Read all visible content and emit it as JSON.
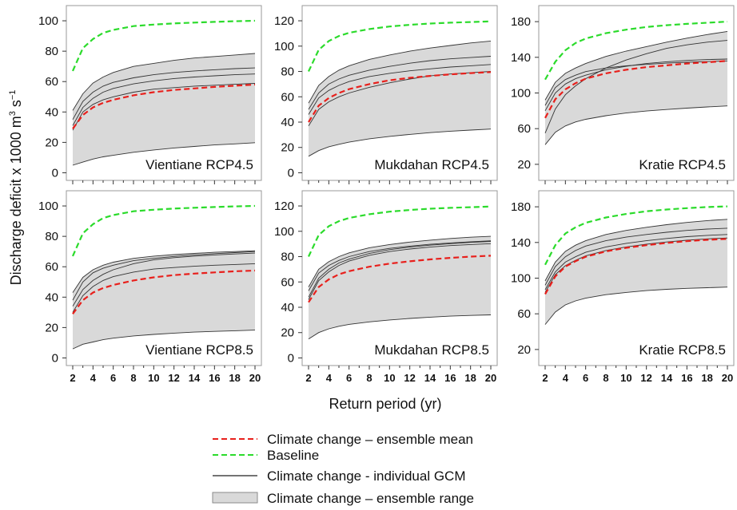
{
  "labels": {
    "ylabel": "Discharge deficit x 1000 m",
    "ylabel_sup": "3",
    "ylabel_mid": " s",
    "ylabel_sup2": "−1",
    "xlabel": "Return period (yr)"
  },
  "legend": [
    {
      "label": "Climate change – ensemble mean",
      "style": "dashed",
      "color": "#e8201c"
    },
    {
      "label": "Baseline",
      "style": "dashed",
      "color": "#2bdb2b"
    },
    {
      "label": "Climate change - individual GCM",
      "style": "solid",
      "color": "#222222"
    },
    {
      "label": "Climate change – ensemble range",
      "style": "fill",
      "color": "#d9d9d9"
    }
  ],
  "colors": {
    "mean": "#e8201c",
    "baseline": "#2bdb2b",
    "gcm": "#333333",
    "range": "#d9d9d9",
    "range_edge": "#333333"
  },
  "chart_data": [
    {
      "type": "line",
      "title": "Vientiane RCP4.5",
      "x": [
        2,
        3,
        4,
        5,
        6,
        8,
        10,
        12,
        14,
        16,
        18,
        20
      ],
      "xticks": [
        "2",
        "4",
        "6",
        "8",
        "10",
        "12",
        "14",
        "16",
        "18",
        "20"
      ],
      "yticks": [
        0,
        20,
        40,
        60,
        80,
        100
      ],
      "ylim": [
        -5,
        110
      ],
      "series": [
        {
          "role": "baseline",
          "values": [
            67,
            82,
            88,
            92,
            94,
            96.5,
            97.5,
            98.3,
            98.8,
            99.3,
            99.7,
            100
          ]
        },
        {
          "role": "mean",
          "values": [
            29,
            38,
            43,
            46,
            48,
            51,
            53,
            54.5,
            55.5,
            56.5,
            57.3,
            58
          ]
        },
        {
          "role": "range_upper",
          "values": [
            41,
            52,
            59,
            63,
            66,
            70,
            72,
            74,
            75.5,
            76.5,
            77.5,
            78.5
          ]
        },
        {
          "role": "range_lower",
          "values": [
            5,
            7,
            9,
            10.5,
            11.5,
            13.5,
            15,
            16.3,
            17.3,
            18.3,
            19,
            19.8
          ]
        },
        {
          "role": "gcm",
          "values": [
            35,
            47,
            53,
            57,
            59.5,
            62.5,
            64.5,
            66,
            67,
            67.8,
            68.5,
            69
          ]
        },
        {
          "role": "gcm",
          "values": [
            31,
            43,
            49,
            53,
            55.5,
            58.5,
            60.5,
            62,
            63,
            63.8,
            64.5,
            65
          ]
        },
        {
          "role": "gcm",
          "values": [
            28,
            40,
            45,
            48,
            50,
            53,
            55,
            56,
            57,
            57.6,
            58.2,
            58.8
          ]
        }
      ]
    },
    {
      "type": "line",
      "title": "Mukdahan RCP4.5",
      "x": [
        2,
        3,
        4,
        5,
        6,
        8,
        10,
        12,
        14,
        16,
        18,
        20
      ],
      "xticks": [
        "2",
        "4",
        "6",
        "8",
        "10",
        "12",
        "14",
        "16",
        "18",
        "20"
      ],
      "yticks": [
        0,
        20,
        40,
        60,
        80,
        100,
        120
      ],
      "ylim": [
        -6,
        132
      ],
      "series": [
        {
          "role": "baseline",
          "values": [
            80,
            97,
            104,
            108,
            110.5,
            113.5,
            115.5,
            116.8,
            117.8,
            118.5,
            119,
            119.5
          ]
        },
        {
          "role": "mean",
          "values": [
            40,
            53,
            59,
            63,
            66,
            70,
            73,
            75,
            76.5,
            77.7,
            78.7,
            79.5
          ]
        },
        {
          "role": "range_upper",
          "values": [
            55,
            69,
            76,
            81,
            84.5,
            89.5,
            93,
            96,
            98.5,
            100.5,
            102.5,
            104
          ]
        },
        {
          "role": "range_lower",
          "values": [
            13,
            17.5,
            20.5,
            22.5,
            24.2,
            26.8,
            28.7,
            30.3,
            31.7,
            32.8,
            33.7,
            34.5
          ]
        },
        {
          "role": "gcm",
          "values": [
            50,
            63,
            70,
            74,
            77,
            81,
            84,
            86.5,
            88.5,
            90,
            91,
            92
          ]
        },
        {
          "role": "gcm",
          "values": [
            46,
            59,
            65,
            69,
            72,
            76,
            78.5,
            80.5,
            82,
            83.5,
            84.5,
            85.5
          ]
        },
        {
          "role": "gcm",
          "values": [
            37,
            50,
            56,
            60,
            63,
            67.5,
            71,
            74,
            76.5,
            78,
            79,
            80
          ]
        }
      ]
    },
    {
      "type": "line",
      "title": "Kratie RCP4.5",
      "x": [
        2,
        3,
        4,
        5,
        6,
        8,
        10,
        12,
        14,
        16,
        18,
        20
      ],
      "xticks": [
        "2",
        "4",
        "6",
        "8",
        "10",
        "12",
        "14",
        "16",
        "18",
        "20"
      ],
      "yticks": [
        20,
        60,
        100,
        140,
        180
      ],
      "ylim": [
        2,
        198
      ],
      "series": [
        {
          "role": "baseline",
          "values": [
            115,
            135,
            148,
            156,
            161,
            167,
            171,
            174,
            176,
            177.5,
            178.8,
            180
          ]
        },
        {
          "role": "mean",
          "values": [
            72,
            93,
            104,
            111,
            116,
            122,
            126,
            129,
            131,
            133,
            134.5,
            136
          ]
        },
        {
          "role": "range_upper",
          "values": [
            92,
            112,
            122,
            128,
            133,
            141,
            147,
            152,
            157,
            161.5,
            165.5,
            169
          ]
        },
        {
          "role": "range_lower",
          "values": [
            42,
            56,
            63,
            67.5,
            70.5,
            74.5,
            77.5,
            79.8,
            81.5,
            83,
            84.3,
            85.5
          ]
        },
        {
          "role": "gcm",
          "values": [
            86,
            106,
            115,
            120,
            124,
            128,
            130.5,
            132,
            133.5,
            134.5,
            135.3,
            136
          ]
        },
        {
          "role": "gcm",
          "values": [
            80,
            100,
            110,
            116,
            120,
            126,
            130,
            133,
            135,
            136.5,
            137.5,
            138
          ]
        },
        {
          "role": "gcm",
          "values": [
            55,
            82,
            98,
            108,
            116,
            128,
            137,
            144,
            150,
            154,
            157,
            159
          ]
        }
      ]
    },
    {
      "type": "line",
      "title": "Vientiane RCP8.5",
      "x": [
        2,
        3,
        4,
        5,
        6,
        8,
        10,
        12,
        14,
        16,
        18,
        20
      ],
      "xticks": [
        "2",
        "4",
        "6",
        "8",
        "10",
        "12",
        "14",
        "16",
        "18",
        "20"
      ],
      "yticks": [
        0,
        20,
        40,
        60,
        80,
        100
      ],
      "ylim": [
        -5,
        110
      ],
      "series": [
        {
          "role": "baseline",
          "values": [
            67,
            82,
            88,
            92,
            94,
            96.5,
            97.5,
            98.3,
            98.8,
            99.3,
            99.7,
            100
          ]
        },
        {
          "role": "mean",
          "values": [
            29,
            38,
            43,
            46,
            48,
            51,
            53,
            54.5,
            55.5,
            56.3,
            57,
            57.5
          ]
        },
        {
          "role": "range_upper",
          "values": [
            43,
            53,
            58,
            61,
            63,
            65.5,
            67,
            68,
            68.8,
            69.5,
            70,
            70.5
          ]
        },
        {
          "role": "range_lower",
          "values": [
            6,
            9,
            10.5,
            12,
            13,
            14.5,
            15.5,
            16.3,
            17,
            17.5,
            17.9,
            18.3
          ]
        },
        {
          "role": "gcm",
          "values": [
            38,
            50,
            56,
            59,
            61,
            64,
            65.5,
            66.8,
            67.8,
            68.6,
            69.3,
            70
          ]
        },
        {
          "role": "gcm",
          "values": [
            34,
            45,
            51,
            55,
            58,
            62,
            64.5,
            66,
            67,
            67.8,
            68.4,
            69
          ]
        },
        {
          "role": "gcm",
          "values": [
            30,
            41,
            47,
            51,
            53.5,
            56.5,
            58.5,
            59.5,
            60.3,
            61,
            61.5,
            62
          ]
        }
      ]
    },
    {
      "type": "line",
      "title": "Mukdahan RCP8.5",
      "x": [
        2,
        3,
        4,
        5,
        6,
        8,
        10,
        12,
        14,
        16,
        18,
        20
      ],
      "xticks": [
        "2",
        "4",
        "6",
        "8",
        "10",
        "12",
        "14",
        "16",
        "18",
        "20"
      ],
      "yticks": [
        0,
        20,
        40,
        60,
        80,
        100,
        120
      ],
      "ylim": [
        -6,
        132
      ],
      "series": [
        {
          "role": "baseline",
          "values": [
            80,
            97,
            104,
            108,
            110.5,
            113.5,
            115.5,
            116.8,
            117.8,
            118.5,
            119,
            119.5
          ]
        },
        {
          "role": "mean",
          "values": [
            44,
            56,
            62,
            66,
            68.5,
            72,
            74.5,
            76.3,
            77.8,
            79,
            80,
            80.7
          ]
        },
        {
          "role": "range_upper",
          "values": [
            56,
            70,
            76,
            80,
            83,
            87,
            89.5,
            91.5,
            93,
            94.3,
            95.3,
            96
          ]
        },
        {
          "role": "range_lower",
          "values": [
            15,
            20,
            23,
            25,
            26.5,
            28.5,
            30,
            31.2,
            32.2,
            33,
            33.6,
            34
          ]
        },
        {
          "role": "gcm",
          "values": [
            53,
            67,
            73,
            77,
            80,
            84,
            86.5,
            88.3,
            89.7,
            90.8,
            91.7,
            92.5
          ]
        },
        {
          "role": "gcm",
          "values": [
            48,
            63,
            70,
            75,
            78,
            82.5,
            85.5,
            87.5,
            89,
            90.2,
            91.2,
            92
          ]
        },
        {
          "role": "gcm",
          "values": [
            46,
            61,
            68,
            73,
            76.5,
            81,
            84,
            86,
            87.5,
            88.7,
            89.5,
            90.2
          ]
        }
      ]
    },
    {
      "type": "line",
      "title": "Kratie RCP8.5",
      "x": [
        2,
        3,
        4,
        5,
        6,
        8,
        10,
        12,
        14,
        16,
        18,
        20
      ],
      "xticks": [
        "2",
        "4",
        "6",
        "8",
        "10",
        "12",
        "14",
        "16",
        "18",
        "20"
      ],
      "yticks": [
        20,
        60,
        100,
        140,
        180
      ],
      "ylim": [
        2,
        198
      ],
      "series": [
        {
          "role": "baseline",
          "values": [
            115,
            137,
            150,
            157,
            162,
            168,
            172,
            175,
            177,
            178.5,
            179.7,
            180.5
          ]
        },
        {
          "role": "mean",
          "values": [
            82,
            102,
            113,
            119,
            124,
            130,
            134,
            137,
            139.5,
            141.5,
            143,
            144
          ]
        },
        {
          "role": "range_upper",
          "values": [
            97,
            118,
            130,
            137,
            142,
            149,
            153.5,
            157,
            160,
            162.5,
            164.5,
            166
          ]
        },
        {
          "role": "range_lower",
          "values": [
            48,
            62,
            70,
            74.5,
            77.5,
            81.5,
            84,
            86,
            87.5,
            88.5,
            89.3,
            90
          ]
        },
        {
          "role": "gcm",
          "values": [
            92,
            113,
            124,
            131,
            136,
            142,
            146,
            149,
            151.5,
            153.5,
            155,
            156
          ]
        },
        {
          "role": "gcm",
          "values": [
            87,
            107,
            118,
            124,
            129,
            135,
            139,
            142,
            144.5,
            146.5,
            148,
            149
          ]
        },
        {
          "role": "gcm",
          "values": [
            84,
            104,
            114,
            120,
            125,
            131,
            135,
            138,
            140.5,
            142.5,
            144,
            145
          ]
        }
      ]
    }
  ]
}
